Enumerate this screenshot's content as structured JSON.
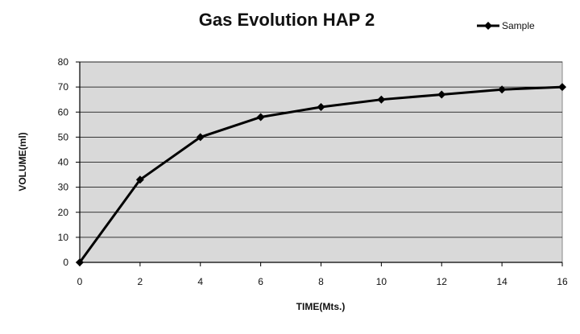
{
  "chart_data": {
    "type": "line",
    "title": "Gas Evolution HAP 2",
    "xlabel": "TIME(Mts.)",
    "ylabel": "VOLUME(ml)",
    "xlim": [
      0,
      16
    ],
    "ylim": [
      0,
      80
    ],
    "x_ticks": [
      "0",
      "2",
      "4",
      "6",
      "8",
      "10",
      "12",
      "14",
      "16"
    ],
    "y_ticks": [
      "0",
      "10",
      "20",
      "30",
      "40",
      "50",
      "60",
      "70",
      "80"
    ],
    "grid": true,
    "legend_position": "top-right",
    "plot_background": "#d9d9d9",
    "series": [
      {
        "name": "Sample",
        "color": "#000000",
        "marker": "diamond",
        "x": [
          0,
          2,
          4,
          6,
          8,
          10,
          12,
          14,
          16
        ],
        "y": [
          0,
          33,
          50,
          58,
          62,
          65,
          67,
          69,
          70
        ]
      }
    ]
  }
}
